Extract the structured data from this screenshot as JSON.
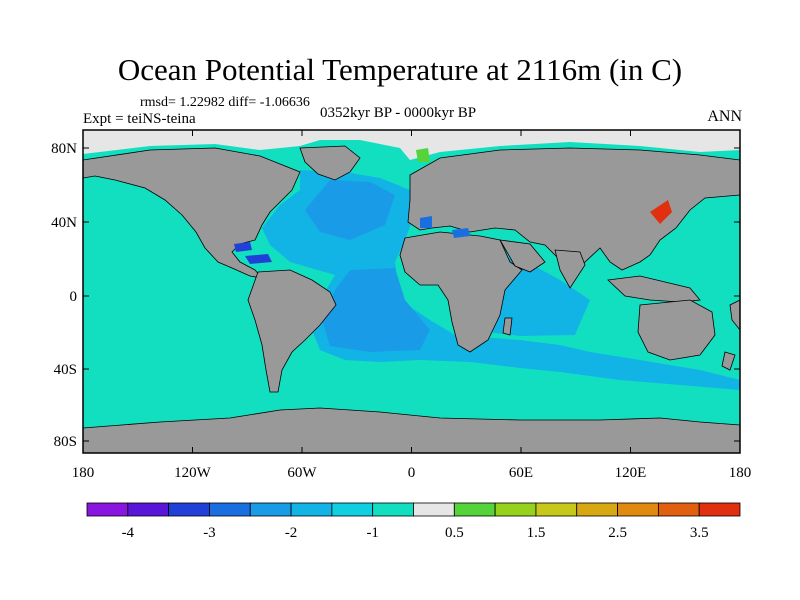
{
  "title": "Ocean Potential Temperature at 2116m (in C)",
  "stats": "rmsd= 1.22982 diff= -1.06636",
  "expt": "Expt = teiNS-teina",
  "period": "0352kyr BP - 0000kyr BP",
  "season": "ANN",
  "x_ticks": [
    "180",
    "120W",
    "60W",
    "0",
    "60E",
    "120E",
    "180"
  ],
  "y_ticks": [
    "80N",
    "40N",
    "0",
    "40S",
    "80S"
  ],
  "colorbar": {
    "colors": [
      "#8b15e0",
      "#5a16d8",
      "#2040d8",
      "#1a6fe0",
      "#1a9be8",
      "#12b4e6",
      "#10cfe0",
      "#12dfc0",
      "#e6e6e6",
      "#54d43a",
      "#96d21c",
      "#c6c81a",
      "#d8a812",
      "#e08a10",
      "#e06010",
      "#e03010"
    ],
    "labels": [
      {
        "text": "-4",
        "after": 1
      },
      {
        "text": "-3",
        "after": 3
      },
      {
        "text": "-2",
        "after": 5
      },
      {
        "text": "-1",
        "after": 7
      },
      {
        "text": "0.5",
        "after": 9
      },
      {
        "text": "1.5",
        "after": 11
      },
      {
        "text": "2.5",
        "after": 13
      },
      {
        "text": "3.5",
        "after": 15
      }
    ]
  },
  "colors": {
    "ocean": "#12dfc0",
    "land": "#999999",
    "sea_ice": "#e6e6e6",
    "atlantic": "#1a9be8",
    "atlantic_mid": "#12b4e6",
    "caribbean": "#2040d8",
    "med_patch": "#1a6fe0",
    "arctic_patch": "#54d43a",
    "japan_sea": "#e03010"
  }
}
